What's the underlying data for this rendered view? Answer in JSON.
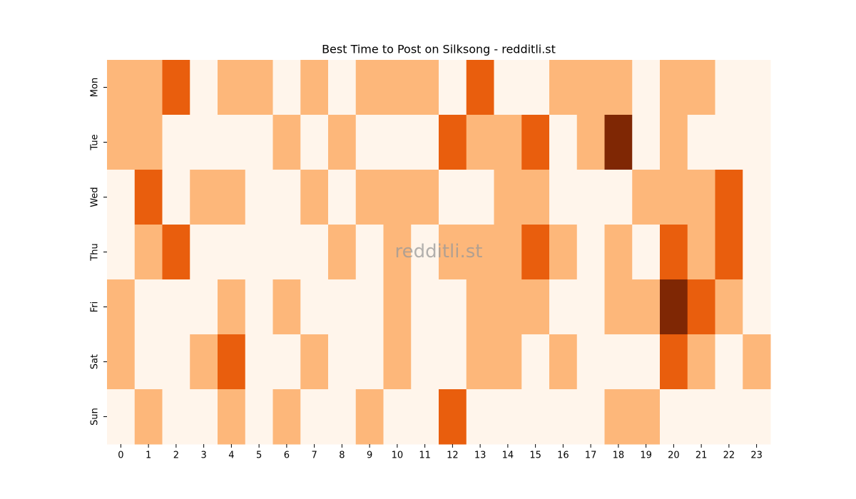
{
  "chart_data": {
    "type": "heatmap",
    "title": "Best Time to Post on Silksong - redditli.st",
    "watermark": "redditli.st",
    "x": [
      0,
      1,
      2,
      3,
      4,
      5,
      6,
      7,
      8,
      9,
      10,
      11,
      12,
      13,
      14,
      15,
      16,
      17,
      18,
      19,
      20,
      21,
      22,
      23
    ],
    "y": [
      "Mon",
      "Tue",
      "Wed",
      "Thu",
      "Fri",
      "Sat",
      "Sun"
    ],
    "z": [
      [
        1,
        1,
        2,
        0,
        1,
        1,
        0,
        1,
        0,
        1,
        1,
        1,
        0,
        2,
        0,
        0,
        1,
        1,
        1,
        0,
        1,
        1,
        0,
        0
      ],
      [
        1,
        1,
        0,
        0,
        0,
        0,
        1,
        0,
        1,
        0,
        0,
        0,
        2,
        1,
        1,
        2,
        0,
        1,
        3,
        0,
        1,
        0,
        0,
        0
      ],
      [
        0,
        2,
        0,
        1,
        1,
        0,
        0,
        1,
        0,
        1,
        1,
        1,
        0,
        0,
        1,
        1,
        0,
        0,
        0,
        1,
        1,
        1,
        2,
        0
      ],
      [
        0,
        1,
        2,
        0,
        0,
        0,
        0,
        0,
        1,
        0,
        1,
        0,
        1,
        1,
        1,
        2,
        1,
        0,
        1,
        0,
        2,
        1,
        2,
        0
      ],
      [
        1,
        0,
        0,
        0,
        1,
        0,
        1,
        0,
        0,
        0,
        1,
        0,
        0,
        1,
        1,
        1,
        0,
        0,
        1,
        1,
        3,
        2,
        1,
        0
      ],
      [
        1,
        0,
        0,
        1,
        2,
        0,
        0,
        1,
        0,
        0,
        1,
        0,
        0,
        1,
        1,
        0,
        1,
        0,
        0,
        0,
        2,
        1,
        0,
        1
      ],
      [
        0,
        1,
        0,
        0,
        1,
        0,
        1,
        0,
        0,
        1,
        0,
        0,
        2,
        0,
        0,
        0,
        0,
        0,
        1,
        1,
        0,
        0,
        0,
        0
      ]
    ],
    "zlim": [
      0,
      3
    ],
    "colors": [
      "#fff5eb",
      "#fdb77a",
      "#e95e0d",
      "#7f2704"
    ]
  }
}
